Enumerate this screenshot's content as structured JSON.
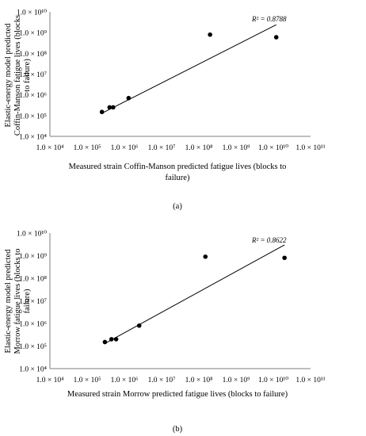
{
  "figure": {
    "caption_a": "(a)",
    "caption_b": "(b)"
  },
  "chart_data": [
    {
      "type": "scatter",
      "xlabel_lines": [
        "Measured strain Coffin-Manson predicted fatigue lives (blocks to",
        "failure)"
      ],
      "ylabel_lines": [
        "Elastic-energy model predicted",
        "Coffin-Manson fatigue lives (blocks",
        "to failure)"
      ],
      "x_scale": "log",
      "y_scale": "log",
      "xlim": [
        10000,
        100000000000
      ],
      "ylim": [
        10000,
        10000000000
      ],
      "x_ticks": [
        10000,
        100000,
        1000000,
        10000000,
        100000000,
        1000000000,
        10000000000,
        100000000000
      ],
      "y_ticks": [
        10000,
        100000,
        1000000,
        10000000,
        100000000,
        1000000000,
        10000000000
      ],
      "x_tick_labels": [
        "1.0 × 10⁴",
        "1.0 × 10⁵",
        "1.0 × 10⁶",
        "1.0 × 10⁷",
        "1.0 × 10⁸",
        "1.0 × 10⁹",
        "1.0 × 10¹⁰",
        "1.0 × 10¹¹"
      ],
      "y_tick_labels": [
        "1.0 × 10⁴",
        "1.0 × 10⁵",
        "1.0 × 10⁶",
        "1.0 × 10⁷",
        "1.0 × 10⁸",
        "1.0 × 10⁹",
        "1.0 × 10¹⁰"
      ],
      "points": [
        {
          "x": 250000,
          "y": 150000
        },
        {
          "x": 400000,
          "y": 250000
        },
        {
          "x": 500000,
          "y": 250000
        },
        {
          "x": 1300000,
          "y": 700000
        },
        {
          "x": 200000000,
          "y": 800000000
        },
        {
          "x": 12000000000,
          "y": 600000000
        }
      ],
      "trendline": {
        "x": [
          250000,
          12000000000
        ],
        "y": [
          130000,
          2400000000
        ]
      },
      "annotation": "R² = 0.8788",
      "grid": false
    },
    {
      "type": "scatter",
      "xlabel_lines": [
        "Measured strain Morrow predicted fatigue lives (blocks to failure)"
      ],
      "ylabel_lines": [
        "Elastic-energy model predicted",
        "Morrow fatigue lives (blocks to",
        "failure)"
      ],
      "x_scale": "log",
      "y_scale": "log",
      "xlim": [
        10000,
        100000000000
      ],
      "ylim": [
        10000,
        10000000000
      ],
      "x_ticks": [
        10000,
        100000,
        1000000,
        10000000,
        100000000,
        1000000000,
        10000000000,
        100000000000
      ],
      "y_ticks": [
        10000,
        100000,
        1000000,
        10000000,
        100000000,
        1000000000,
        10000000000
      ],
      "x_tick_labels": [
        "1.0 × 10⁴",
        "1.0 × 10⁵",
        "1.0 × 10⁶",
        "1.0 × 10⁷",
        "1.0 × 10⁸",
        "1.0 × 10⁹",
        "1.0 × 10¹⁰",
        "1.0 × 10¹¹"
      ],
      "y_tick_labels": [
        "1.0 × 10⁴",
        "1.0 × 10⁵",
        "1.0 × 10⁶",
        "1.0 × 10⁷",
        "1.0 × 10⁸",
        "1.0 × 10⁹",
        "1.0 × 10¹⁰"
      ],
      "points": [
        {
          "x": 300000,
          "y": 150000
        },
        {
          "x": 450000,
          "y": 200000
        },
        {
          "x": 600000,
          "y": 200000
        },
        {
          "x": 2500000,
          "y": 800000
        },
        {
          "x": 150000000,
          "y": 900000000
        },
        {
          "x": 20000000000,
          "y": 800000000
        }
      ],
      "trendline": {
        "x": [
          300000,
          20000000000
        ],
        "y": [
          130000,
          3000000000
        ]
      },
      "annotation": "R² = 0.8622",
      "grid": false
    }
  ]
}
